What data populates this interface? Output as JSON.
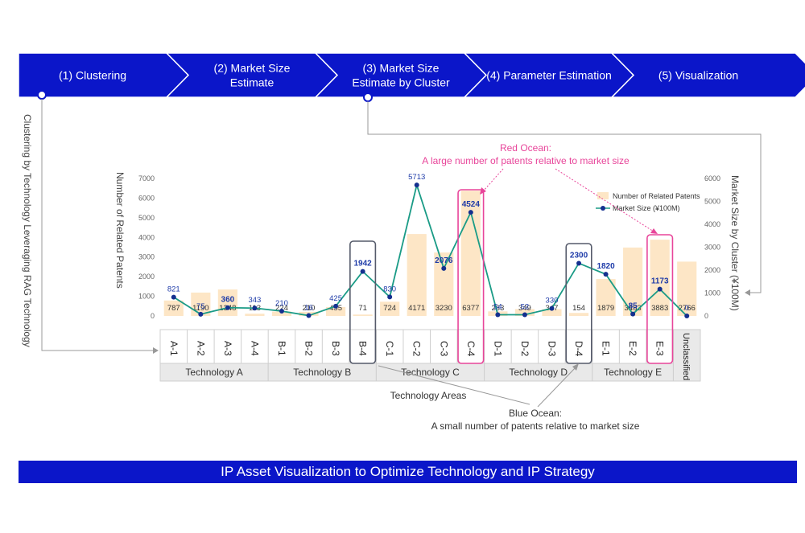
{
  "process_steps": [
    {
      "label": "(1) Clustering"
    },
    {
      "label": "(2) Market Size Estimate"
    },
    {
      "label": "(3) Market Size Estimate by Cluster"
    },
    {
      "label": "(4) Parameter Estimation"
    },
    {
      "label": "(5) Visualization"
    }
  ],
  "side_note": "Clustering by Technology Leveraging RAG Technology",
  "annotations": {
    "red_ocean_title": "Red Ocean:",
    "red_ocean_text": "A large number of patents relative to market size",
    "blue_ocean_title": "Blue Ocean:",
    "blue_ocean_text": "A small number of patents relative to market size",
    "technology_areas": "Technology Areas"
  },
  "footer_banner": "IP Asset Visualization to Optimize Technology and IP Strategy",
  "colors": {
    "banner_blue": "#0b16c9",
    "bar": "#fde6c6",
    "line": "#1a9b86",
    "marker": "#14308f",
    "pink": "#e8459a",
    "dark_box": "#555a6a",
    "group_bg": "#e9e9e9"
  },
  "chart_data": {
    "type": "bar",
    "ylabel": "Number of Related Patents",
    "y2label": "Market Size by Cluster (¥100M)",
    "ylim": [
      0,
      7000
    ],
    "yticks": [
      0,
      1000,
      2000,
      3000,
      4000,
      5000,
      6000,
      7000
    ],
    "y2lim": [
      0,
      6000
    ],
    "y2ticks": [
      0,
      1000,
      2000,
      3000,
      4000,
      5000,
      6000
    ],
    "categories": [
      "A-1",
      "A-2",
      "A-3",
      "A-4",
      "B-1",
      "B-2",
      "B-3",
      "B-4",
      "C-1",
      "C-2",
      "C-3",
      "C-4",
      "D-1",
      "D-2",
      "D-3",
      "D-4",
      "E-1",
      "E-2",
      "E-3",
      "Unclassified"
    ],
    "groups": [
      {
        "name": "Technology A",
        "count": 4
      },
      {
        "name": "Technology B",
        "count": 4
      },
      {
        "name": "Technology C",
        "count": 4
      },
      {
        "name": "Technology D",
        "count": 4
      },
      {
        "name": "Technology E",
        "count": 3
      },
      {
        "name": "Unclassified",
        "count": 1
      }
    ],
    "legend_position": "top-right",
    "series": [
      {
        "name": "Number of Related Patents",
        "type": "bar",
        "values": [
          787,
          1190,
          1348,
          113,
          224,
          210,
          455,
          71,
          724,
          4171,
          3230,
          6377,
          233,
          349,
          347,
          154,
          1879,
          3483,
          3883,
          2766
        ]
      },
      {
        "name": "Market Size (¥100M)",
        "type": "line",
        "values": [
          821,
          75,
          360,
          343,
          210,
          16,
          425,
          1942,
          830,
          5713,
          2076,
          4524,
          54,
          52,
          330,
          2300,
          1820,
          85,
          1173,
          0
        ]
      }
    ],
    "highlight_red_ocean": [
      "C-4",
      "E-3"
    ],
    "highlight_blue_ocean": [
      "B-4",
      "D-4"
    ]
  }
}
